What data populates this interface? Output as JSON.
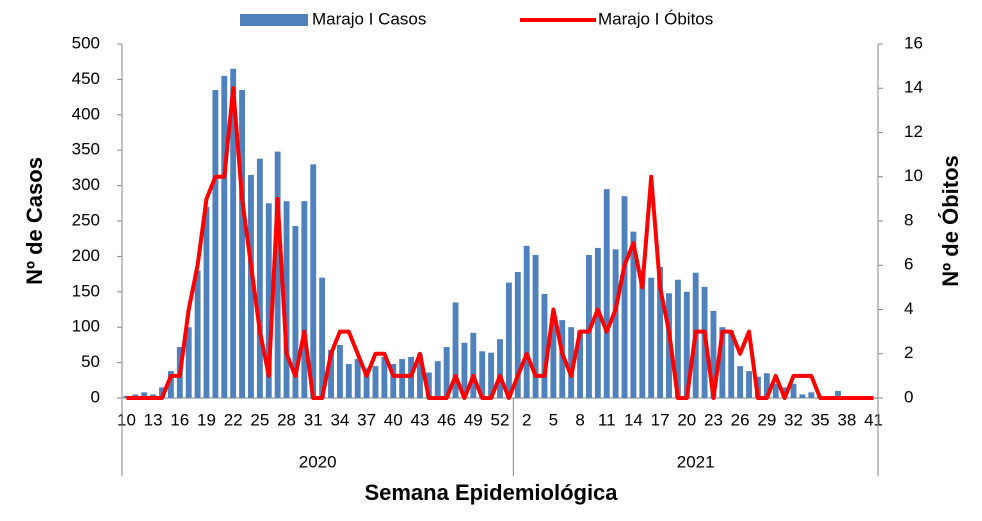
{
  "chart_data": {
    "type": "bar",
    "series": [
      {
        "name": "Marajo I Casos",
        "color": "#4f81bd",
        "type": "bar",
        "values": [
          3,
          5,
          8,
          5,
          15,
          38,
          72,
          100,
          180,
          270,
          435,
          455,
          465,
          435,
          315,
          338,
          275,
          348,
          278,
          243,
          278,
          330,
          170,
          68,
          75,
          48,
          55,
          42,
          45,
          58,
          48,
          55,
          58,
          62,
          36,
          52,
          72,
          135,
          78,
          92,
          66,
          64,
          83,
          163,
          178,
          215,
          202,
          147,
          118,
          110,
          100,
          95,
          202,
          212,
          295,
          210,
          285,
          235,
          180,
          170,
          185,
          148,
          167,
          150,
          177,
          157,
          123,
          100,
          95,
          45,
          38,
          30,
          35,
          20,
          15,
          20,
          5,
          8,
          3,
          2,
          10,
          2,
          0,
          0,
          0
        ]
      },
      {
        "name": "Marajo I Óbitos",
        "color": "#ff0000",
        "type": "line",
        "axis": "y2",
        "values": [
          0,
          0,
          0,
          0,
          0,
          1,
          1,
          4,
          6,
          9,
          10,
          10,
          14,
          9,
          6,
          3,
          1,
          9,
          2,
          1,
          3,
          0,
          0,
          2,
          3,
          3,
          2,
          1,
          2,
          2,
          1,
          1,
          1,
          2,
          0,
          0,
          0,
          1,
          0,
          1,
          0,
          0,
          1,
          0,
          1,
          2,
          1,
          1,
          4,
          2,
          1,
          3,
          3,
          4,
          3,
          4,
          6,
          7,
          5,
          10,
          5,
          3,
          0,
          0,
          3,
          3,
          0,
          3,
          3,
          2,
          3,
          0,
          0,
          1,
          0,
          1,
          1,
          1,
          0,
          0,
          0,
          0,
          0,
          0,
          0
        ]
      }
    ],
    "categories": [
      "10",
      null,
      null,
      "13",
      null,
      null,
      "16",
      null,
      null,
      "19",
      null,
      null,
      "22",
      null,
      null,
      "25",
      null,
      null,
      "28",
      null,
      null,
      "31",
      null,
      null,
      "34",
      null,
      null,
      "37",
      null,
      null,
      "40",
      null,
      null,
      "43",
      null,
      null,
      "46",
      null,
      null,
      "49",
      null,
      null,
      "52",
      null,
      null,
      "2",
      null,
      null,
      "5",
      null,
      null,
      "8",
      null,
      null,
      "11",
      null,
      null,
      "14",
      null,
      null,
      "17",
      null,
      null,
      "20",
      null,
      null,
      "23",
      null,
      null,
      "26",
      null,
      null,
      "29",
      null,
      null,
      "32",
      null,
      null,
      "35",
      null,
      null,
      "38",
      null,
      null,
      "41"
    ],
    "x_groups": [
      "2020",
      "2021"
    ],
    "xlabel": "Semana Epidemiológica",
    "ylabel": "Nº de Casos",
    "y2label": "Nº de Óbitos",
    "ylim": [
      0,
      500
    ],
    "yticks": [
      0,
      50,
      100,
      150,
      200,
      250,
      300,
      350,
      400,
      450,
      500
    ],
    "y2lim": [
      0,
      16
    ],
    "y2ticks": [
      0,
      2,
      4,
      6,
      8,
      10,
      12,
      14,
      16
    ],
    "grid": false,
    "legend": "top"
  }
}
